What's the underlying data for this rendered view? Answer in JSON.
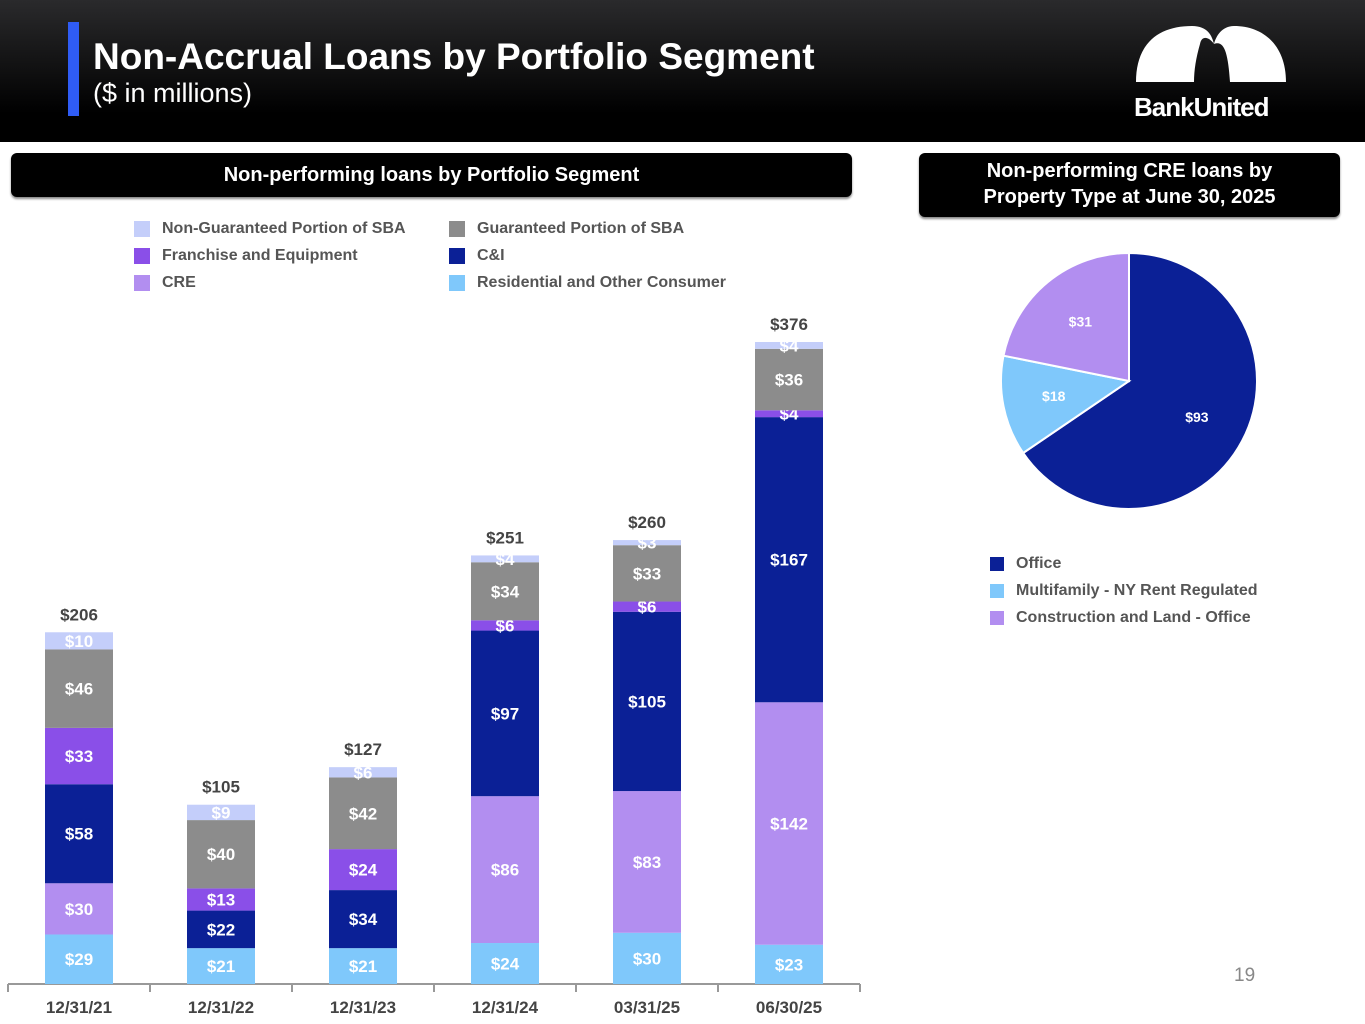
{
  "header": {
    "title": "Non-Accrual Loans by Portfolio Segment",
    "subtitle": "($ in millions)",
    "logo_text": "BankUnited"
  },
  "page_number": "19",
  "colors": {
    "residential": "#7fc8fb",
    "cre": "#b28ef0",
    "ci": "#0b2096",
    "franchise": "#8a4fe8",
    "guaranteed": "#8c8c8c",
    "non_guaranteed": "#c4cefa"
  },
  "chart_data": [
    {
      "type": "bar",
      "stacked": true,
      "title": "Non-performing loans by Portfolio Segment",
      "categories": [
        "12/31/21",
        "12/31/22",
        "12/31/23",
        "12/31/24",
        "03/31/25",
        "06/30/25"
      ],
      "series": [
        {
          "name": "Residential and Other Consumer",
          "color": "#7fc8fb",
          "values": [
            29,
            21,
            21,
            24,
            30,
            23
          ]
        },
        {
          "name": "CRE",
          "color": "#b28ef0",
          "values": [
            30,
            0,
            0,
            86,
            83,
            142
          ]
        },
        {
          "name": "C&I",
          "color": "#0b2096",
          "values": [
            58,
            22,
            34,
            97,
            105,
            167
          ]
        },
        {
          "name": "Franchise and Equipment",
          "color": "#8a4fe8",
          "values": [
            33,
            13,
            24,
            6,
            6,
            4
          ]
        },
        {
          "name": "Guaranteed Portion of SBA",
          "color": "#8c8c8c",
          "values": [
            46,
            40,
            42,
            34,
            33,
            36
          ]
        },
        {
          "name": "Non-Guaranteed Portion of SBA",
          "color": "#c4cefa",
          "values": [
            10,
            9,
            6,
            4,
            3,
            4
          ]
        }
      ],
      "totals": [
        "$206",
        "$105",
        "$127",
        "$251",
        "$260",
        "$376"
      ],
      "legend_order": [
        "Non-Guaranteed Portion of SBA",
        "Guaranteed Portion of SBA",
        "Franchise and Equipment",
        "C&I",
        "CRE",
        "Residential and Other Consumer"
      ],
      "ylim": [
        0,
        376
      ],
      "grid": false
    },
    {
      "type": "pie",
      "title": "Non-performing CRE loans by Property Type at June 30, 2025",
      "title_lines": [
        "Non-performing CRE loans by",
        "Property Type at June 30, 2025"
      ],
      "slices": [
        {
          "name": "Office",
          "value": 93,
          "color": "#0b2096"
        },
        {
          "name": "Multifamily - NY Rent Regulated",
          "value": 18,
          "color": "#7fc8fb"
        },
        {
          "name": "Construction and Land - Office",
          "value": 31,
          "color": "#b28ef0"
        }
      ]
    }
  ]
}
